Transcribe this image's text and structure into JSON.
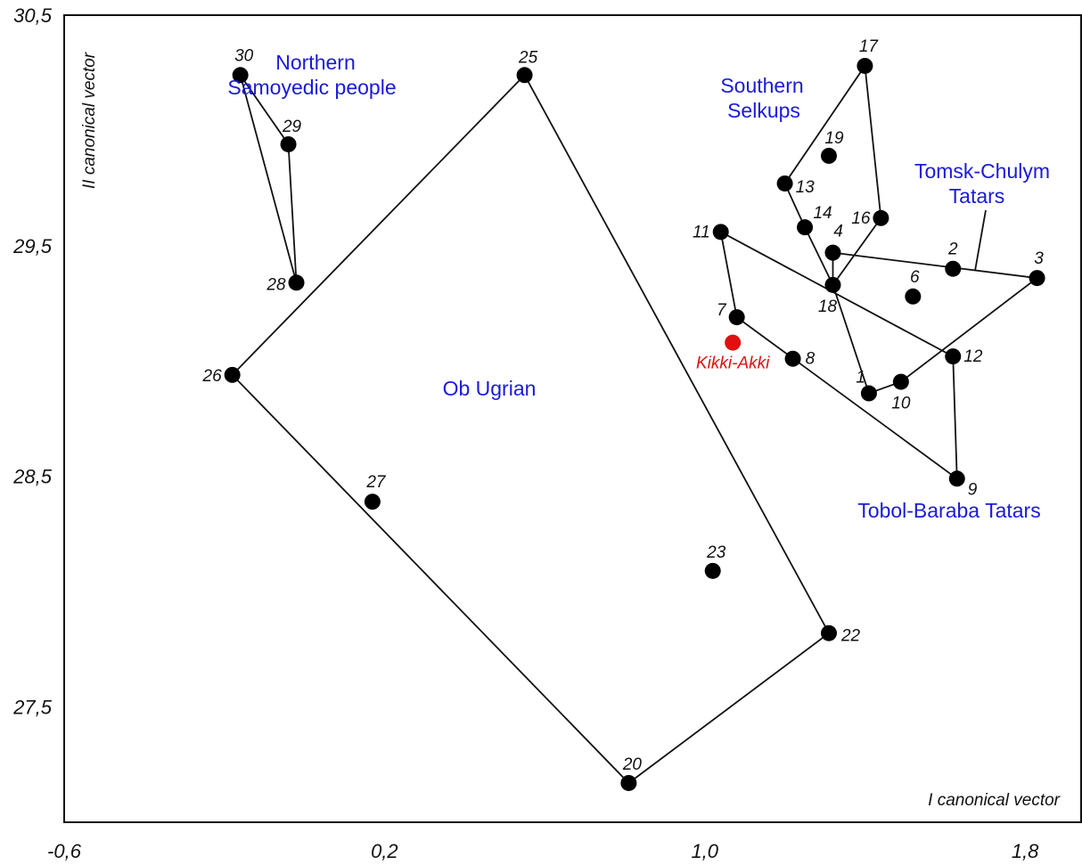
{
  "chart_data": {
    "type": "scatter",
    "xlabel": "I canonical vector",
    "ylabel": "II canonical vector",
    "xlim": [
      -0.6,
      1.94
    ],
    "ylim": [
      27.0,
      30.5
    ],
    "x_ticks": [
      "-0,6",
      "0,2",
      "1,0",
      "1,8"
    ],
    "y_ticks": [
      "30,5",
      "29,5",
      "28,5",
      "27,5"
    ],
    "points": [
      {
        "id": "1",
        "x": 1.41,
        "y": 28.86
      },
      {
        "id": "2",
        "x": 1.62,
        "y": 29.4
      },
      {
        "id": "3",
        "x": 1.83,
        "y": 29.36
      },
      {
        "id": "4",
        "x": 1.32,
        "y": 29.47
      },
      {
        "id": "6",
        "x": 1.52,
        "y": 29.28
      },
      {
        "id": "7",
        "x": 1.08,
        "y": 29.19
      },
      {
        "id": "8",
        "x": 1.22,
        "y": 29.01
      },
      {
        "id": "9",
        "x": 1.63,
        "y": 28.49
      },
      {
        "id": "10",
        "x": 1.49,
        "y": 28.91
      },
      {
        "id": "11",
        "x": 1.04,
        "y": 29.56
      },
      {
        "id": "12",
        "x": 1.62,
        "y": 29.02
      },
      {
        "id": "13",
        "x": 1.2,
        "y": 29.77
      },
      {
        "id": "14",
        "x": 1.25,
        "y": 29.58
      },
      {
        "id": "16",
        "x": 1.44,
        "y": 29.62
      },
      {
        "id": "17",
        "x": 1.4,
        "y": 30.28
      },
      {
        "id": "18",
        "x": 1.32,
        "y": 29.33
      },
      {
        "id": "19",
        "x": 1.31,
        "y": 29.89
      },
      {
        "id": "20",
        "x": 0.81,
        "y": 27.17
      },
      {
        "id": "22",
        "x": 1.31,
        "y": 27.82
      },
      {
        "id": "23",
        "x": 1.02,
        "y": 28.09
      },
      {
        "id": "25",
        "x": 0.55,
        "y": 30.24
      },
      {
        "id": "26",
        "x": -0.18,
        "y": 28.94
      },
      {
        "id": "27",
        "x": 0.17,
        "y": 28.39
      },
      {
        "id": "28",
        "x": -0.02,
        "y": 29.34
      },
      {
        "id": "29",
        "x": -0.04,
        "y": 29.94
      },
      {
        "id": "30",
        "x": -0.16,
        "y": 30.24
      }
    ],
    "special_point": {
      "label": "Kikki-Akki",
      "x": 1.07,
      "y": 29.08,
      "color": "#e01010"
    },
    "hulls": [
      {
        "name": "Northern Samoyedic people",
        "points": [
          "30",
          "29",
          "28"
        ]
      },
      {
        "name": "Ob Ugrian",
        "points": [
          "25",
          "22",
          "20",
          "26"
        ]
      },
      {
        "name": "Southern Selkups",
        "points": [
          "17",
          "16",
          "18",
          "14",
          "13"
        ]
      },
      {
        "name": "Tomsk-Chulym Tatars",
        "points": [
          "4",
          "3",
          "10",
          "1",
          "18"
        ]
      },
      {
        "name": "Tobol-Baraba Tatars",
        "points": [
          "11",
          "12",
          "9",
          "7"
        ]
      }
    ],
    "group_labels": [
      {
        "lines": [
          "Northern",
          "Samoyedic people"
        ]
      },
      {
        "lines": [
          "Ob Ugrian"
        ]
      },
      {
        "lines": [
          "Southern",
          "Selkups"
        ]
      },
      {
        "lines": [
          "Tomsk-Chulym",
          "Tatars"
        ]
      },
      {
        "lines": [
          "Tobol-Baraba Tatars"
        ]
      }
    ],
    "grid": false,
    "colors": {
      "points": "#000000",
      "group_labels": "#1a1adc",
      "special": "#e01010"
    }
  }
}
